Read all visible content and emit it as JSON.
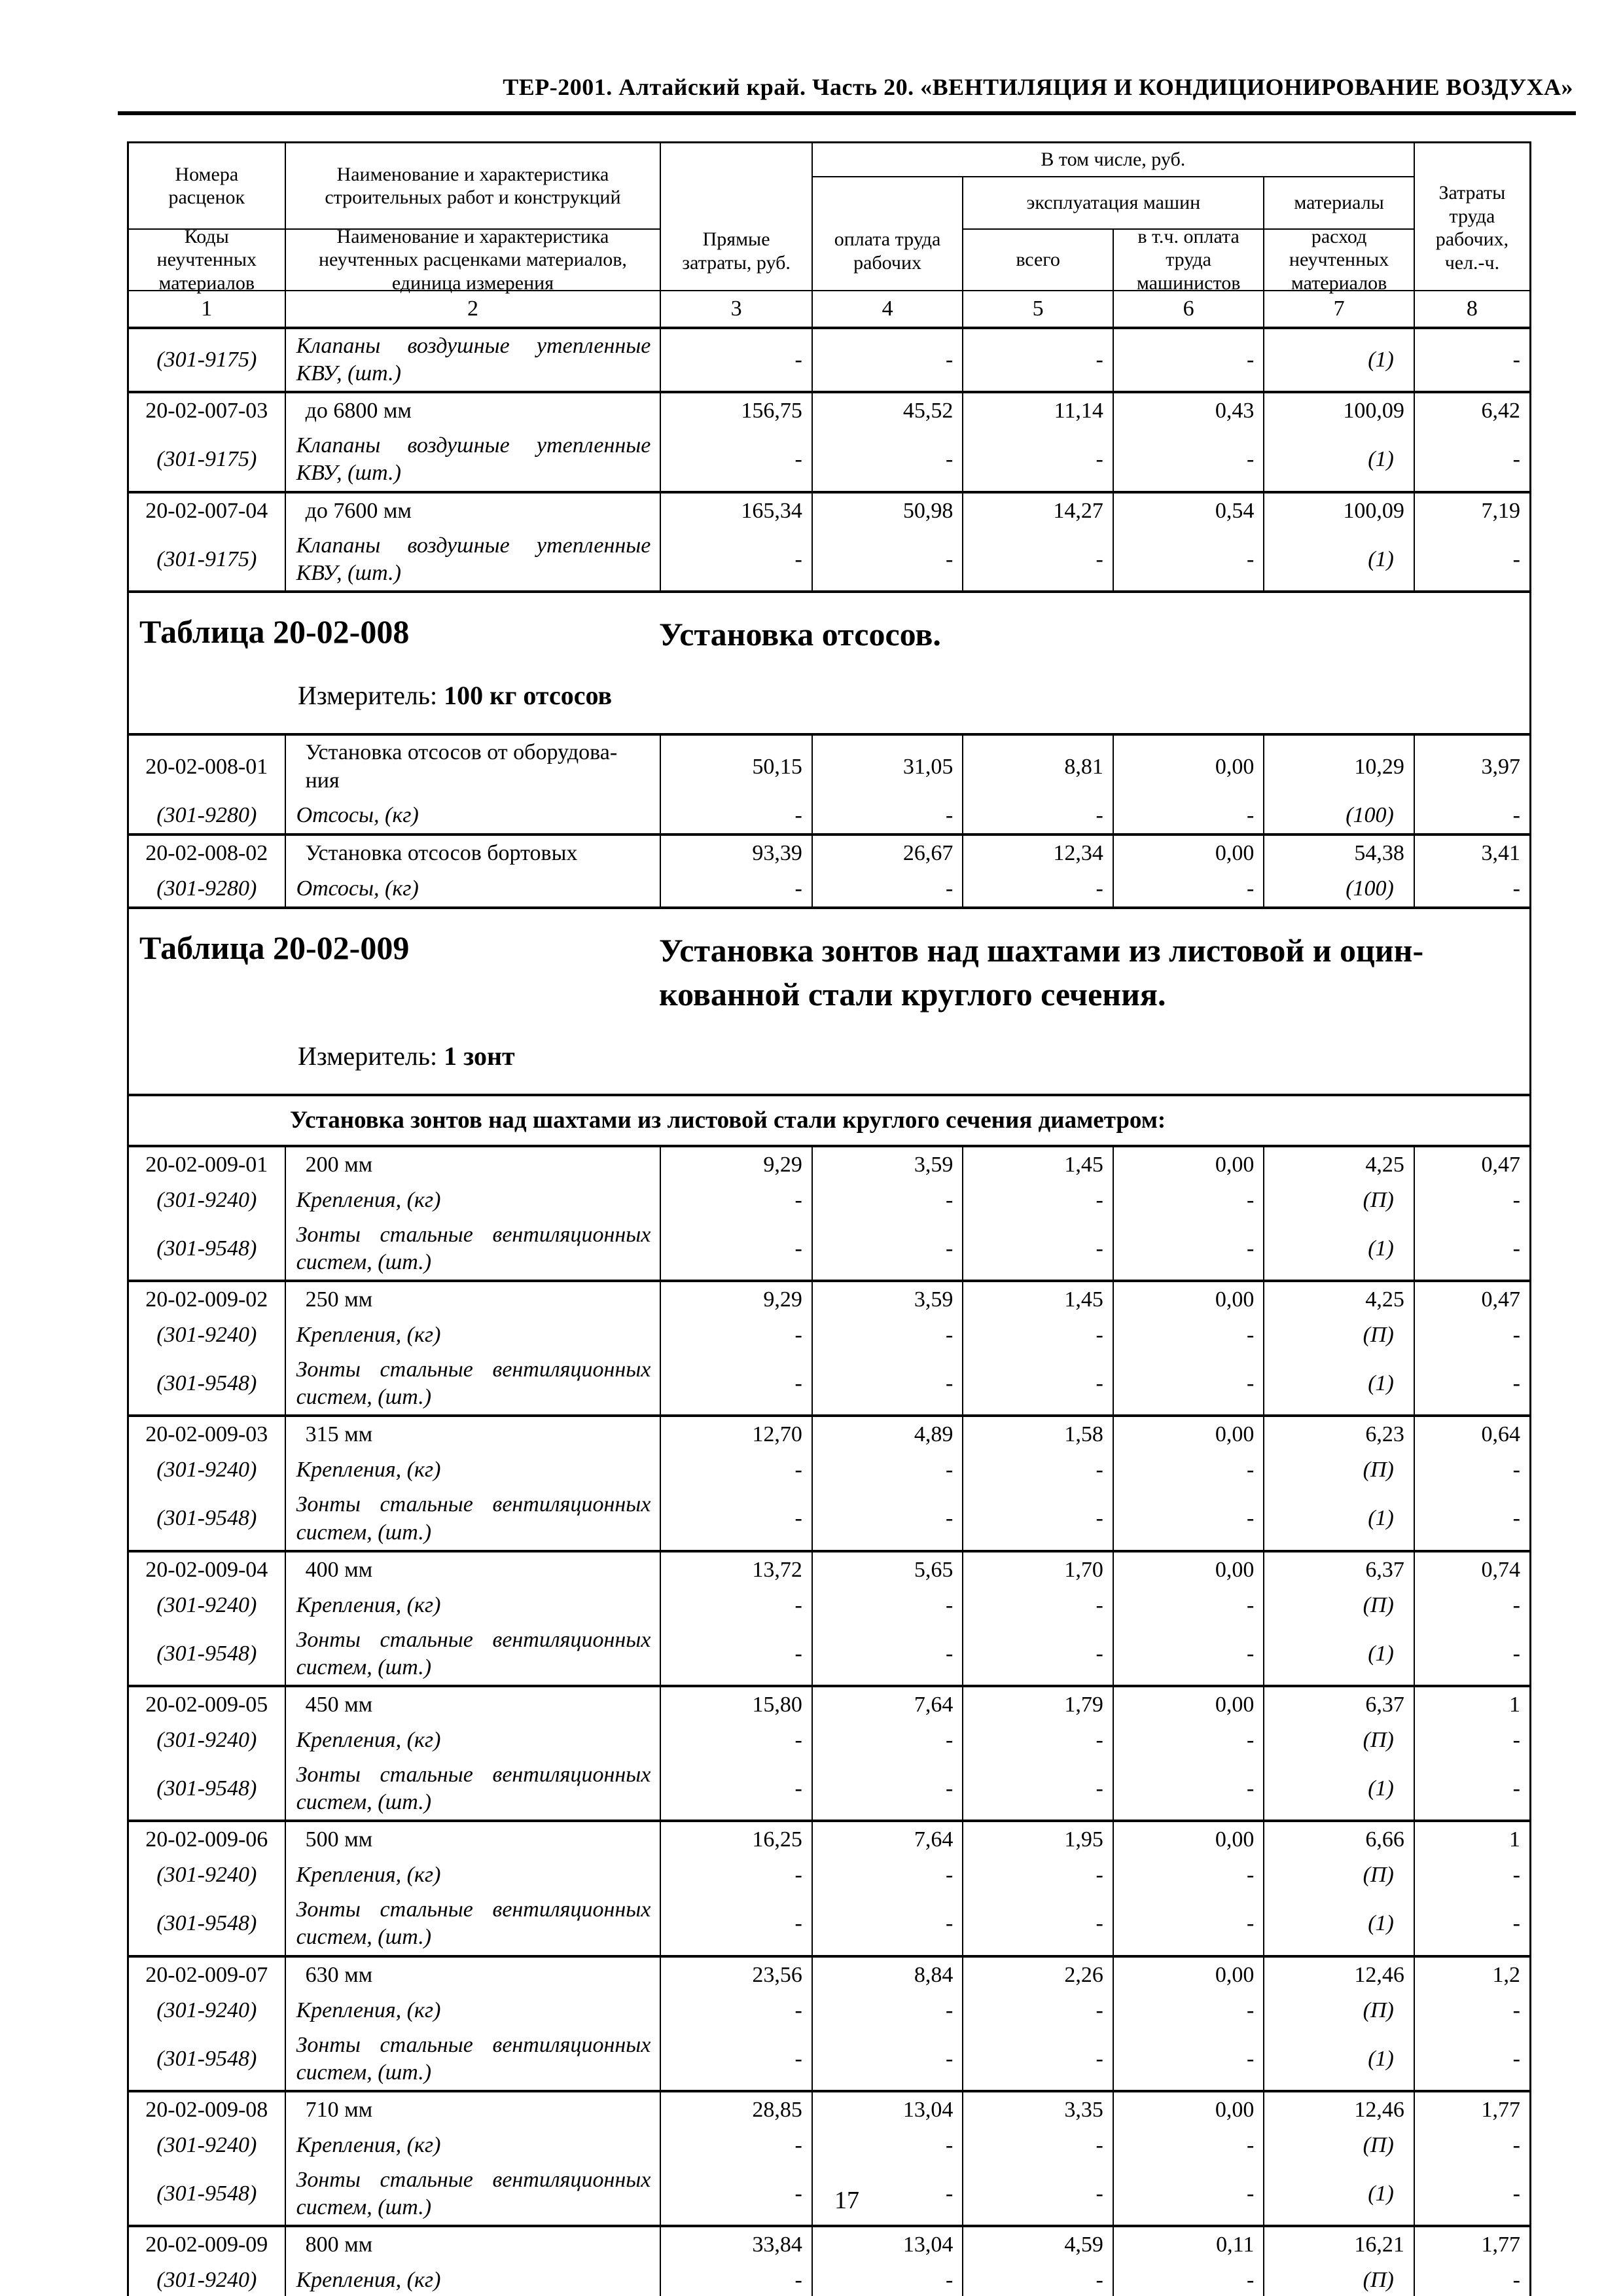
{
  "page": {
    "running_title": "ТЕР-2001. Алтайский край. Часть 20. «ВЕНТИЛЯЦИЯ И КОНДИЦИОНИРОВАНИЕ ВОЗДУХА»",
    "page_number": "17"
  },
  "table_head": {
    "col1_top": "Номера расценок",
    "col1_bottom": "Коды неучтенных материалов",
    "col2_top": "Наименование и характеристика строительных работ и конструкций",
    "col2_bottom": "Наименование и характеристика неучтенных расценками материалов, единица измерения",
    "col3": "Прямые затраты, руб.",
    "group_top": "В том числе, руб.",
    "col4": "оплата труда рабочих",
    "machines": "эксплуатация машин",
    "materials": "материалы",
    "col5": "всего",
    "col6": "в т.ч. оплата труда машинистов",
    "col7": "расход неучтенных материалов",
    "col8": "Затраты труда рабочих, чел.-ч.",
    "col_numbers": [
      "1",
      "2",
      "3",
      "4",
      "5",
      "6",
      "7",
      "8"
    ]
  },
  "sections": [
    {
      "type": "rows",
      "groups": [
        {
          "materials": [
            {
              "code": "(301-9175)",
              "desc": "Клапаны воздушные утепленные КВУ, (шт.)",
              "values": [
                "-",
                "-",
                "-",
                "-",
                "(1)",
                "-"
              ]
            }
          ]
        },
        {
          "code": "20-02-007-03",
          "desc": "до 6800 мм",
          "values": [
            "156,75",
            "45,52",
            "11,14",
            "0,43",
            "100,09",
            "6,42"
          ],
          "materials": [
            {
              "code": "(301-9175)",
              "desc": "Клапаны воздушные утепленные КВУ, (шт.)",
              "values": [
                "-",
                "-",
                "-",
                "-",
                "(1)",
                "-"
              ]
            }
          ]
        },
        {
          "code": "20-02-007-04",
          "desc": "до 7600 мм",
          "values": [
            "165,34",
            "50,98",
            "14,27",
            "0,54",
            "100,09",
            "7,19"
          ],
          "materials": [
            {
              "code": "(301-9175)",
              "desc": "Клапаны воздушные утепленные КВУ, (шт.)",
              "values": [
                "-",
                "-",
                "-",
                "-",
                "(1)",
                "-"
              ]
            }
          ]
        }
      ]
    },
    {
      "type": "title",
      "table_no": "Таблица 20-02-008",
      "title": "Установка отсосов.",
      "measure_label": "Измеритель:",
      "measure_value": "100 кг отсосов"
    },
    {
      "type": "rows",
      "groups": [
        {
          "code": "20-02-008-01",
          "desc": "Установка отсосов от оборудова-\nния",
          "values": [
            "50,15",
            "31,05",
            "8,81",
            "0,00",
            "10,29",
            "3,97"
          ],
          "materials": [
            {
              "code": "(301-9280)",
              "desc": "Отсосы, (кг)",
              "values": [
                "-",
                "-",
                "-",
                "-",
                "(100)",
                "-"
              ]
            }
          ]
        },
        {
          "code": "20-02-008-02",
          "desc": "Установка отсосов бортовых",
          "values": [
            "93,39",
            "26,67",
            "12,34",
            "0,00",
            "54,38",
            "3,41"
          ],
          "materials": [
            {
              "code": "(301-9280)",
              "desc": "Отсосы, (кг)",
              "values": [
                "-",
                "-",
                "-",
                "-",
                "(100)",
                "-"
              ]
            }
          ]
        }
      ]
    },
    {
      "type": "title",
      "table_no": "Таблица 20-02-009",
      "title": "Установка зонтов над шахтами из листовой и оцин-\nкованной стали круглого сечения.",
      "measure_label": "Измеритель:",
      "measure_value": "1 зонт"
    },
    {
      "type": "section_row",
      "text": "Установка зонтов над шахтами из листовой стали круглого сечения диаметром:"
    },
    {
      "type": "rows",
      "groups": [
        {
          "code": "20-02-009-01",
          "desc": "200 мм",
          "values": [
            "9,29",
            "3,59",
            "1,45",
            "0,00",
            "4,25",
            "0,47"
          ],
          "materials": [
            {
              "code": "(301-9240)",
              "desc": "Крепления, (кг)",
              "values": [
                "-",
                "-",
                "-",
                "-",
                "(П)",
                "-"
              ]
            },
            {
              "code": "(301-9548)",
              "desc": "Зонты стальные вентиляционных систем, (шт.)",
              "values": [
                "-",
                "-",
                "-",
                "-",
                "(1)",
                "-"
              ]
            }
          ]
        },
        {
          "code": "20-02-009-02",
          "desc": "250 мм",
          "values": [
            "9,29",
            "3,59",
            "1,45",
            "0,00",
            "4,25",
            "0,47"
          ],
          "materials": [
            {
              "code": "(301-9240)",
              "desc": "Крепления, (кг)",
              "values": [
                "-",
                "-",
                "-",
                "-",
                "(П)",
                "-"
              ]
            },
            {
              "code": "(301-9548)",
              "desc": "Зонты стальные вентиляционных систем, (шт.)",
              "values": [
                "-",
                "-",
                "-",
                "-",
                "(1)",
                "-"
              ]
            }
          ]
        },
        {
          "code": "20-02-009-03",
          "desc": "315 мм",
          "values": [
            "12,70",
            "4,89",
            "1,58",
            "0,00",
            "6,23",
            "0,64"
          ],
          "materials": [
            {
              "code": "(301-9240)",
              "desc": "Крепления, (кг)",
              "values": [
                "-",
                "-",
                "-",
                "-",
                "(П)",
                "-"
              ]
            },
            {
              "code": "(301-9548)",
              "desc": "Зонты стальные вентиляционных систем, (шт.)",
              "values": [
                "-",
                "-",
                "-",
                "-",
                "(1)",
                "-"
              ]
            }
          ]
        },
        {
          "code": "20-02-009-04",
          "desc": "400 мм",
          "values": [
            "13,72",
            "5,65",
            "1,70",
            "0,00",
            "6,37",
            "0,74"
          ],
          "materials": [
            {
              "code": "(301-9240)",
              "desc": "Крепления, (кг)",
              "values": [
                "-",
                "-",
                "-",
                "-",
                "(П)",
                "-"
              ]
            },
            {
              "code": "(301-9548)",
              "desc": "Зонты стальные вентиляционных систем, (шт.)",
              "values": [
                "-",
                "-",
                "-",
                "-",
                "(1)",
                "-"
              ]
            }
          ]
        },
        {
          "code": "20-02-009-05",
          "desc": "450 мм",
          "values": [
            "15,80",
            "7,64",
            "1,79",
            "0,00",
            "6,37",
            "1"
          ],
          "materials": [
            {
              "code": "(301-9240)",
              "desc": "Крепления, (кг)",
              "values": [
                "-",
                "-",
                "-",
                "-",
                "(П)",
                "-"
              ]
            },
            {
              "code": "(301-9548)",
              "desc": "Зонты стальные вентиляционных систем, (шт.)",
              "values": [
                "-",
                "-",
                "-",
                "-",
                "(1)",
                "-"
              ]
            }
          ]
        },
        {
          "code": "20-02-009-06",
          "desc": "500 мм",
          "values": [
            "16,25",
            "7,64",
            "1,95",
            "0,00",
            "6,66",
            "1"
          ],
          "materials": [
            {
              "code": "(301-9240)",
              "desc": "Крепления, (кг)",
              "values": [
                "-",
                "-",
                "-",
                "-",
                "(П)",
                "-"
              ]
            },
            {
              "code": "(301-9548)",
              "desc": "Зонты стальные вентиляционных систем, (шт.)",
              "values": [
                "-",
                "-",
                "-",
                "-",
                "(1)",
                "-"
              ]
            }
          ]
        },
        {
          "code": "20-02-009-07",
          "desc": "630 мм",
          "values": [
            "23,56",
            "8,84",
            "2,26",
            "0,00",
            "12,46",
            "1,2"
          ],
          "materials": [
            {
              "code": "(301-9240)",
              "desc": "Крепления, (кг)",
              "values": [
                "-",
                "-",
                "-",
                "-",
                "(П)",
                "-"
              ]
            },
            {
              "code": "(301-9548)",
              "desc": "Зонты стальные вентиляционных систем, (шт.)",
              "values": [
                "-",
                "-",
                "-",
                "-",
                "(1)",
                "-"
              ]
            }
          ]
        },
        {
          "code": "20-02-009-08",
          "desc": "710 мм",
          "values": [
            "28,85",
            "13,04",
            "3,35",
            "0,00",
            "12,46",
            "1,77"
          ],
          "materials": [
            {
              "code": "(301-9240)",
              "desc": "Крепления, (кг)",
              "values": [
                "-",
                "-",
                "-",
                "-",
                "(П)",
                "-"
              ]
            },
            {
              "code": "(301-9548)",
              "desc": "Зонты стальные вентиляционных систем, (шт.)",
              "values": [
                "-",
                "-",
                "-",
                "-",
                "(1)",
                "-"
              ]
            }
          ]
        },
        {
          "code": "20-02-009-09",
          "desc": "800 мм",
          "values": [
            "33,84",
            "13,04",
            "4,59",
            "0,11",
            "16,21",
            "1,77"
          ],
          "materials": [
            {
              "code": "(301-9240)",
              "desc": "Крепления, (кг)",
              "values": [
                "-",
                "-",
                "-",
                "-",
                "(П)",
                "-"
              ]
            }
          ]
        }
      ]
    }
  ]
}
